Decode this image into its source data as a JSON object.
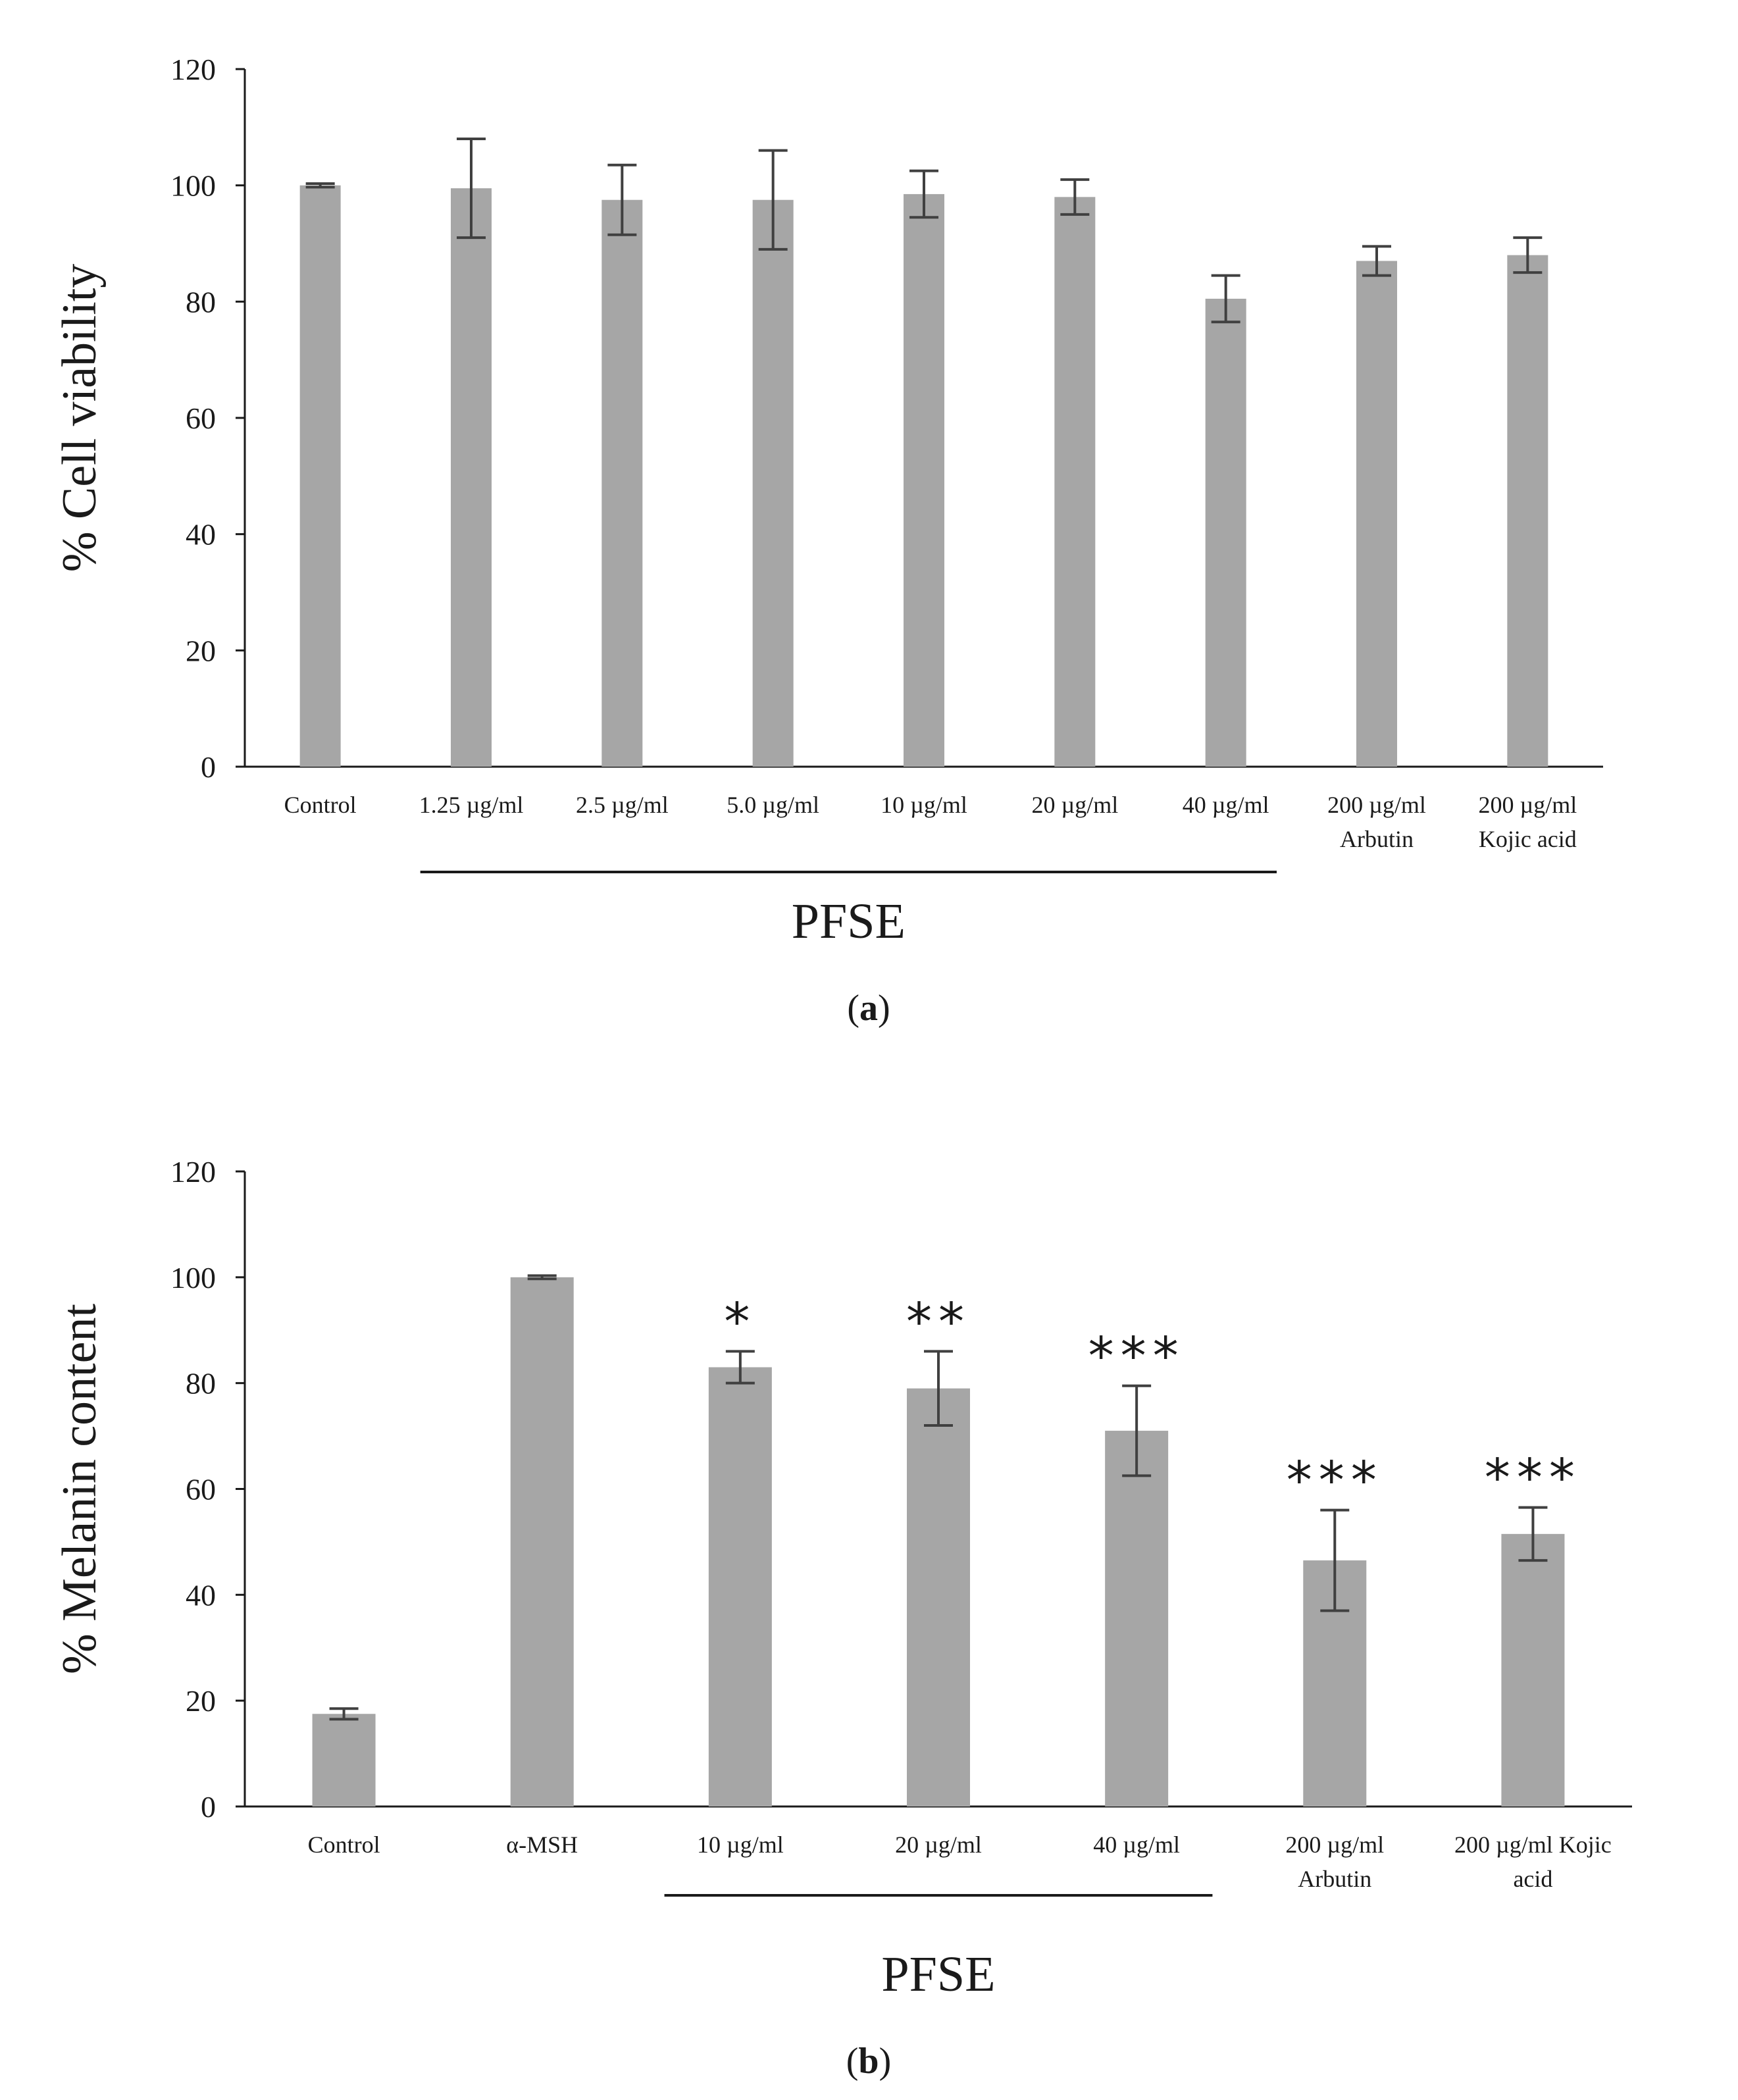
{
  "colors": {
    "bar": "#a6a6a6",
    "axis": "#1a1a1a",
    "error_bar": "#404040",
    "text": "#1a1a1a"
  },
  "chart_data": [
    {
      "type": "bar",
      "panel_label": "a",
      "title": "",
      "xlabel": "",
      "ylabel": "% Cell viability",
      "ylim": [
        0,
        120
      ],
      "yticks": [
        0,
        20,
        40,
        60,
        80,
        100,
        120
      ],
      "grid": false,
      "categories": [
        [
          "Control"
        ],
        [
          "1.25 µg/ml"
        ],
        [
          "2.5 µg/ml"
        ],
        [
          "5.0 µg/ml"
        ],
        [
          "10 µg/ml"
        ],
        [
          "20 µg/ml"
        ],
        [
          "40 µg/ml"
        ],
        [
          "200 µg/ml",
          "Arbutin"
        ],
        [
          "200 µg/ml",
          "Kojic acid"
        ]
      ],
      "values": [
        100,
        99.5,
        97.5,
        97.5,
        98.5,
        98.0,
        80.5,
        87.0,
        88.0
      ],
      "errors": [
        0.3,
        8.5,
        6.0,
        8.5,
        4.0,
        3.0,
        4.0,
        2.5,
        3.0
      ],
      "significance": [
        "",
        "",
        "",
        "",
        "",
        "",
        "",
        "",
        ""
      ],
      "group_bracket": {
        "label": "PFSE",
        "from_index": 1,
        "to_index": 6
      }
    },
    {
      "type": "bar",
      "panel_label": "b",
      "title": "",
      "xlabel": "",
      "ylabel": "% Melanin content",
      "ylim": [
        0,
        120
      ],
      "yticks": [
        0,
        20,
        40,
        60,
        80,
        100,
        120
      ],
      "grid": false,
      "categories": [
        [
          "Control"
        ],
        [
          "α-MSH"
        ],
        [
          "10 µg/ml"
        ],
        [
          "20 µg/ml"
        ],
        [
          "40 µg/ml"
        ],
        [
          "200 µg/ml",
          "Arbutin"
        ],
        [
          "200 µg/ml Kojic",
          "acid"
        ]
      ],
      "values": [
        17.5,
        100,
        83.0,
        79.0,
        71.0,
        46.5,
        51.5
      ],
      "errors": [
        1.0,
        0.3,
        3.0,
        7.0,
        8.5,
        9.5,
        5.0
      ],
      "significance": [
        "",
        "",
        "*",
        "**",
        "***",
        "***",
        "***"
      ],
      "group_bracket": {
        "label": "PFSE",
        "from_index": 2,
        "to_index": 4
      }
    }
  ]
}
